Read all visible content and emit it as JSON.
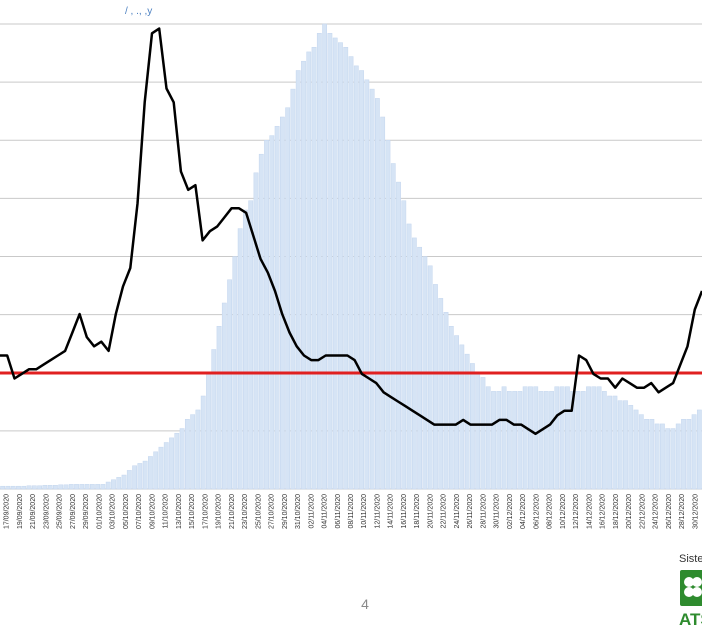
{
  "page_number": "4",
  "logo": {
    "top_text": "Siste",
    "bottom_text": "ATS"
  },
  "colors": {
    "bars": "#d6e4f5",
    "bar_edge": "#c4d6ee",
    "line": "#000000",
    "threshold": "#e02020",
    "grid": "#c9c9c9",
    "logo_green": "#2e8b2e"
  },
  "chart_data": {
    "type": "bar+line",
    "title": "",
    "xlabel": "",
    "ylabel": "",
    "grid": true,
    "x_tick_labels": [
      "17/09/2020",
      "19/09/2020",
      "21/09/2020",
      "23/09/2020",
      "25/09/2020",
      "27/09/2020",
      "29/09/2020",
      "01/10/2020",
      "03/10/2020",
      "05/10/2020",
      "07/10/2020",
      "09/10/2020",
      "11/10/2020",
      "13/10/2020",
      "15/10/2020",
      "17/10/2020",
      "19/10/2020",
      "21/10/2020",
      "23/10/2020",
      "25/10/2020",
      "27/10/2020",
      "29/10/2020",
      "31/10/2020",
      "02/11/2020",
      "04/11/2020",
      "06/11/2020",
      "08/11/2020",
      "10/11/2020",
      "12/11/2020",
      "14/11/2020",
      "16/11/2020",
      "18/11/2020",
      "20/11/2020",
      "22/11/2020",
      "24/11/2020",
      "26/11/2020",
      "28/11/2020",
      "30/11/2020",
      "02/12/2020",
      "04/12/2020",
      "06/12/2020",
      "08/12/2020",
      "10/12/2020",
      "12/12/2020",
      "14/12/2020",
      "16/12/2020",
      "18/12/2020",
      "20/12/2020",
      "22/12/2020",
      "24/12/2020",
      "26/12/2020",
      "28/12/2020",
      "30/12/2020"
    ],
    "bar_values": [
      0.6,
      0.6,
      0.6,
      0.6,
      0.6,
      0.7,
      0.7,
      0.7,
      0.8,
      0.8,
      0.8,
      0.9,
      0.9,
      1,
      1,
      1,
      1,
      1,
      1,
      1,
      1.5,
      2,
      2.5,
      3,
      4,
      5,
      5.5,
      6,
      7,
      8,
      9,
      10,
      11,
      12,
      13,
      15,
      16,
      17,
      20,
      25,
      30,
      35,
      40,
      45,
      50,
      56,
      60,
      62,
      68,
      72,
      75,
      76,
      78,
      80,
      82,
      86,
      90,
      92,
      94,
      95,
      98,
      100,
      98,
      97,
      96,
      95,
      93,
      91,
      90,
      88,
      86,
      84,
      80,
      75,
      70,
      66,
      62,
      57,
      54,
      52,
      50,
      48,
      44,
      41,
      38,
      35,
      33,
      31,
      29,
      27,
      25,
      24,
      22,
      21,
      21,
      22,
      21,
      21,
      21,
      22,
      22,
      22,
      21,
      21,
      21,
      22,
      22,
      22,
      21,
      21,
      21,
      22,
      22,
      22,
      21,
      20,
      20,
      19,
      19,
      18,
      17,
      16,
      15,
      15,
      14,
      14,
      13,
      13,
      14,
      15,
      15,
      16,
      17
    ],
    "line_values": [
      29,
      29,
      24,
      25,
      26,
      26,
      27,
      28,
      29,
      30,
      34,
      38,
      33,
      31,
      32,
      30,
      38,
      44,
      48,
      62,
      84,
      99,
      100,
      87,
      84,
      69,
      65,
      66,
      54,
      56,
      57,
      59,
      61,
      61,
      60,
      55,
      50,
      47,
      43,
      38,
      34,
      31,
      29,
      28,
      28,
      29,
      29,
      29,
      29,
      28,
      25,
      24,
      23,
      21,
      20,
      19,
      18,
      17,
      16,
      15,
      14,
      14,
      14,
      14,
      15,
      14,
      14,
      14,
      14,
      15,
      15,
      14,
      14,
      13,
      12,
      13,
      14,
      16,
      17,
      17,
      29,
      28,
      25,
      24,
      24,
      22,
      24,
      23,
      22,
      22,
      23,
      21,
      22,
      23,
      27,
      31,
      39,
      43
    ]
  },
  "top_glimpse": "/ , ., ,y"
}
